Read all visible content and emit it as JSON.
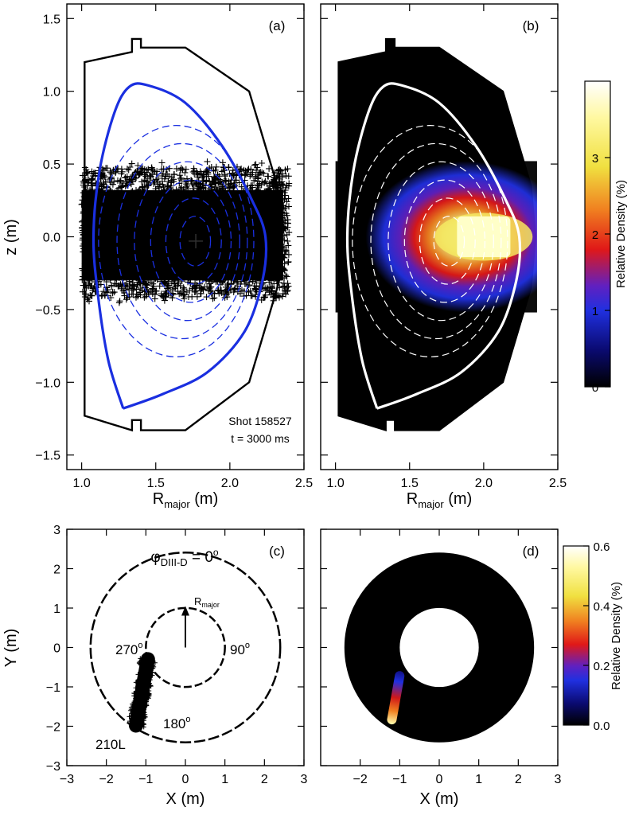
{
  "figure": {
    "panel_a_label": "(a)",
    "panel_b_label": "(b)",
    "panel_c_label": "(c)",
    "panel_d_label": "(d)",
    "shot_text": "Shot 158527",
    "time_text": "t = 3000 ms",
    "top_ylabel": "z (m)",
    "top_xlabel_main": "R",
    "top_xlabel_sub": "major",
    "top_xlabel_unit": " (m)",
    "bottom_ylabel": "Y (m)",
    "bottom_xlabel": "X (m)",
    "colorbar_top_label": "Relative Density (%)",
    "colorbar_bottom_label": "Relative Density (%)",
    "phi_main": "φ",
    "phi_sub": "DIII-D",
    "phi_eq": " = 0",
    "phi_deg": "o",
    "rmajor_main": "R",
    "rmajor_sub": "major",
    "angle_270": "270",
    "angle_90": "90",
    "angle_180": "180",
    "deg_mark": "o",
    "port_label": "210L"
  },
  "chart_data": [
    {
      "panel": "a",
      "type": "scatter",
      "xlabel": "R_major (m)",
      "ylabel": "z (m)",
      "xlim": [
        0.9,
        2.5
      ],
      "ylim": [
        -1.6,
        1.6
      ],
      "xticks": [
        "1.0",
        "1.5",
        "2.0",
        "2.5"
      ],
      "yticks": [
        "−1.5",
        "−1.0",
        "−0.5",
        "0.0",
        "0.5",
        "1.0",
        "1.5"
      ],
      "vessel_wall": [
        [
          1.02,
          1.2
        ],
        [
          1.02,
          -1.23
        ],
        [
          1.34,
          -1.33
        ],
        [
          1.34,
          -1.26
        ],
        [
          1.4,
          -1.26
        ],
        [
          1.4,
          -1.33
        ],
        [
          1.7,
          -1.33
        ],
        [
          2.13,
          -1.0
        ],
        [
          2.32,
          -0.35
        ],
        [
          2.35,
          0.0
        ],
        [
          2.32,
          0.35
        ],
        [
          2.13,
          1.0
        ],
        [
          1.7,
          1.3
        ],
        [
          1.4,
          1.3
        ],
        [
          1.4,
          1.36
        ],
        [
          1.34,
          1.36
        ],
        [
          1.34,
          1.27
        ],
        [
          1.02,
          1.2
        ]
      ],
      "separatrix": [
        [
          1.28,
          -1.18
        ],
        [
          1.18,
          -0.85
        ],
        [
          1.11,
          -0.4
        ],
        [
          1.08,
          0.0
        ],
        [
          1.12,
          0.45
        ],
        [
          1.22,
          0.85
        ],
        [
          1.32,
          1.03
        ],
        [
          1.45,
          1.04
        ],
        [
          1.7,
          0.92
        ],
        [
          1.95,
          0.62
        ],
        [
          2.15,
          0.25
        ],
        [
          2.24,
          0.0
        ],
        [
          2.22,
          -0.3
        ],
        [
          2.1,
          -0.65
        ],
        [
          1.85,
          -0.93
        ],
        [
          1.55,
          -1.08
        ],
        [
          1.28,
          -1.18
        ]
      ],
      "flux_surfaces_dashed": 6,
      "magnetic_axis": [
        1.77,
        -0.03
      ],
      "particle_cloud": {
        "r_range": [
          1.0,
          2.4
        ],
        "z_range": [
          -0.42,
          0.48
        ]
      },
      "line_colors": {
        "wall": "#000000",
        "separatrix": "#1a2fe0",
        "flux": "#1a2fe0"
      }
    },
    {
      "panel": "b",
      "type": "heatmap",
      "xlabel": "R_major (m)",
      "xlim": [
        0.9,
        2.5
      ],
      "ylim": [
        -1.6,
        1.6
      ],
      "xticks": [
        "1.0",
        "1.5",
        "2.0",
        "2.5"
      ],
      "peak_location": [
        2.0,
        0.0
      ],
      "colorbar": {
        "label": "Relative Density (%)",
        "range": [
          0,
          4
        ],
        "ticks": [
          "0",
          "1",
          "2",
          "3"
        ]
      },
      "line_colors": {
        "separatrix": "#ffffff",
        "flux": "#ffffff"
      }
    },
    {
      "panel": "c",
      "type": "scatter",
      "xlabel": "X (m)",
      "ylabel": "Y (m)",
      "xlim": [
        -3,
        3
      ],
      "ylim": [
        -3,
        3
      ],
      "xticks": [
        "−3",
        "−2",
        "−1",
        "0",
        "1",
        "2",
        "3"
      ],
      "yticks": [
        "−3",
        "−2",
        "−1",
        "0",
        "1",
        "2",
        "3"
      ],
      "outer_radius": 2.4,
      "inner_radius": 1.0,
      "beam_start": [
        -1.25,
        -1.98
      ],
      "beam_end": [
        -0.95,
        -0.3
      ],
      "arrow_from": [
        0.0,
        0.0
      ],
      "arrow_to": [
        0.0,
        1.05
      ]
    },
    {
      "panel": "d",
      "type": "heatmap",
      "xlabel": "X (m)",
      "xlim": [
        -3,
        3
      ],
      "ylim": [
        -3,
        3
      ],
      "xticks": [
        "−2",
        "−1",
        "0",
        "1",
        "2",
        "3"
      ],
      "outer_radius": 2.4,
      "inner_radius": 1.0,
      "beam_start": [
        -1.22,
        -1.95
      ],
      "beam_end": [
        -0.98,
        -0.6
      ],
      "colorbar": {
        "label": "Relative Density (%)",
        "range": [
          0,
          0.6
        ],
        "ticks": [
          "0.0",
          "0.2",
          "0.4",
          "0.6"
        ]
      }
    }
  ]
}
